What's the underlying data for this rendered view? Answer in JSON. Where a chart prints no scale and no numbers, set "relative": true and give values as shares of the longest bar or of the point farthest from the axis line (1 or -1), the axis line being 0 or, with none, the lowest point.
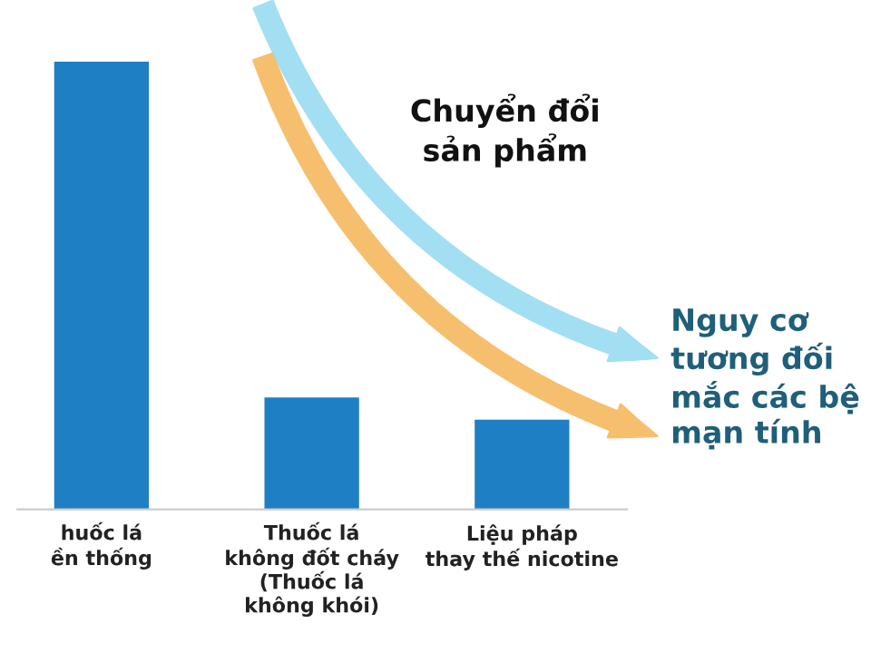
{
  "chart_data": {
    "type": "bar",
    "relative": true,
    "categories": [
      "huốc lá\nền thống",
      "Thuốc lá\nkhông đốt cháy\n(Thuốc lá\nkhông khói)",
      "Liệu pháp\nthay thế nicotine"
    ],
    "values": [
      1,
      0.25,
      0.2
    ],
    "color": "#1f7fc4",
    "annotations": [
      "Chuyển đổi\nsản phẩm",
      "Nguy cơ\ntương đối\nmắc các bệ\nmạn tính"
    ]
  }
}
